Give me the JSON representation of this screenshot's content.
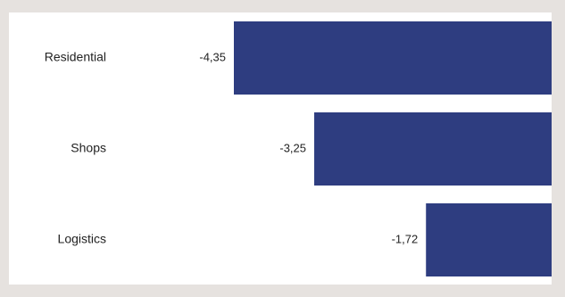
{
  "chart_data": {
    "type": "bar",
    "orientation": "horizontal",
    "categories": [
      "Residential",
      "Shops",
      "Logistics"
    ],
    "values": [
      -4.35,
      -3.25,
      -1.72
    ],
    "value_labels": [
      "-4,35",
      "-3,25",
      "-1,72"
    ],
    "title": "",
    "xlabel": "",
    "ylabel": "",
    "xlim": [
      -4.35,
      0
    ],
    "grid": false,
    "legend": "none",
    "bar_color": "#2e3d80",
    "background_color": "#ffffff",
    "frame_color": "#e6e2df"
  }
}
